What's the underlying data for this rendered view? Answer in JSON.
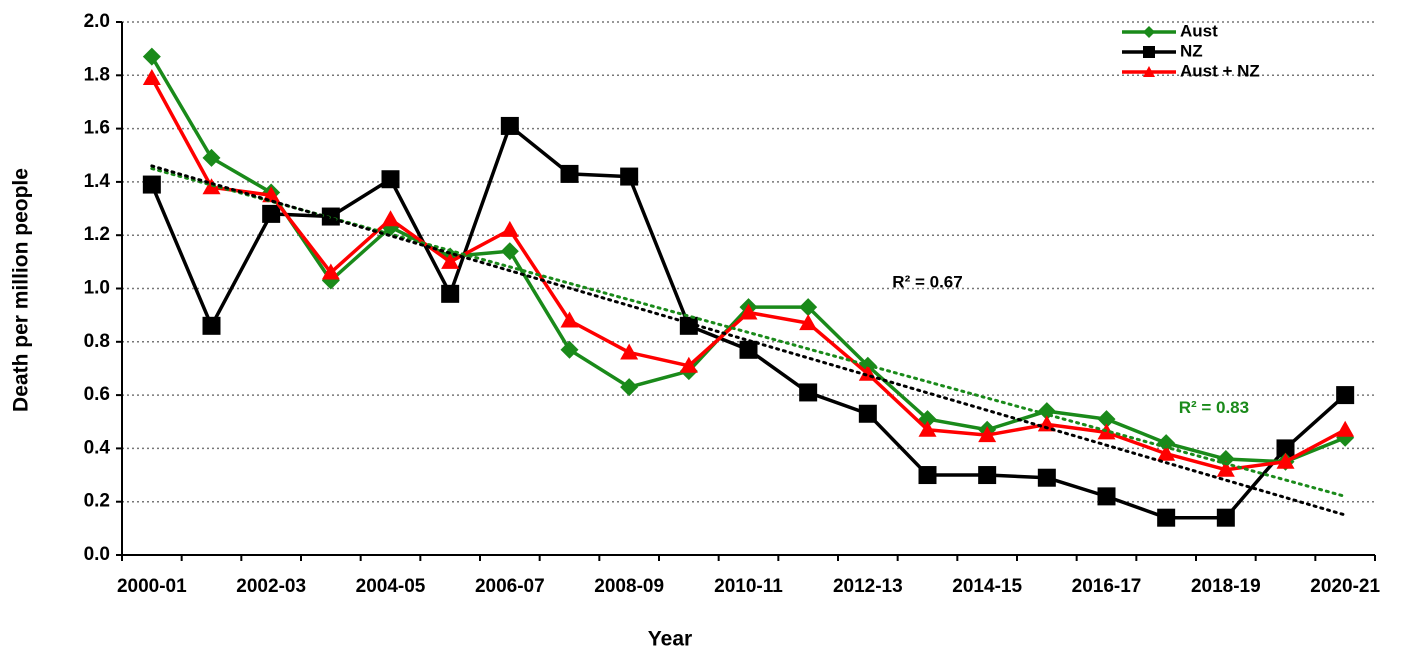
{
  "chart_data": {
    "type": "line",
    "x_label": "Year",
    "y_label": "Death per million people",
    "categories": [
      "2000-01",
      null,
      "2002-03",
      null,
      "2004-05",
      null,
      "2006-07",
      null,
      "2008-09",
      null,
      "2010-11",
      null,
      "2012-13",
      null,
      "2014-15",
      null,
      "2016-17",
      null,
      "2018-19",
      null,
      "2020-21"
    ],
    "series": [
      {
        "name": "NZ",
        "color": "#000000",
        "marker": "square",
        "values": [
          1.39,
          0.86,
          1.28,
          1.27,
          1.41,
          0.98,
          1.61,
          1.43,
          1.42,
          0.86,
          0.77,
          0.61,
          0.53,
          0.3,
          0.3,
          0.29,
          0.22,
          0.14,
          0.14,
          0.4,
          0.6
        ]
      },
      {
        "name": "Aust",
        "color": "#1a8a1a",
        "marker": "diamond",
        "values": [
          1.87,
          1.49,
          1.36,
          1.03,
          1.23,
          1.12,
          1.14,
          0.77,
          0.63,
          0.69,
          0.93,
          0.93,
          0.71,
          0.51,
          0.47,
          0.54,
          0.51,
          0.42,
          0.36,
          0.35,
          0.44
        ]
      },
      {
        "name": "Aust + NZ",
        "color": "#ff0000",
        "marker": "triangle",
        "values": [
          1.79,
          1.38,
          1.35,
          1.06,
          1.26,
          1.1,
          1.22,
          0.88,
          0.76,
          0.71,
          0.91,
          0.87,
          0.68,
          0.47,
          0.45,
          0.49,
          0.46,
          0.38,
          0.32,
          0.35,
          0.47
        ]
      }
    ],
    "legend_order": [
      1,
      0,
      2
    ],
    "trendlines": [
      {
        "color": "#1a8a1a",
        "values": [
          1.45,
          0.22
        ]
      },
      {
        "color": "#000000",
        "values": [
          1.46,
          0.15
        ]
      }
    ],
    "annotations": [
      {
        "text": "R² = 0.67",
        "color": "#000000",
        "category": 13,
        "y": 1.02
      },
      {
        "text": "R² = 0.83",
        "color": "#1a8a1a",
        "category": 17.8,
        "y": 0.55
      }
    ],
    "ylim": [
      0,
      2
    ],
    "yticks": [
      {
        "value": 0,
        "label": "0.0"
      },
      0.2,
      0.4,
      0.6,
      0.8,
      {
        "value": 1,
        "label": "1.0"
      },
      1.2,
      1.4,
      1.6,
      1.8,
      {
        "value": 2,
        "label": "2.0"
      }
    ],
    "grid": true,
    "legend": "upper right"
  }
}
